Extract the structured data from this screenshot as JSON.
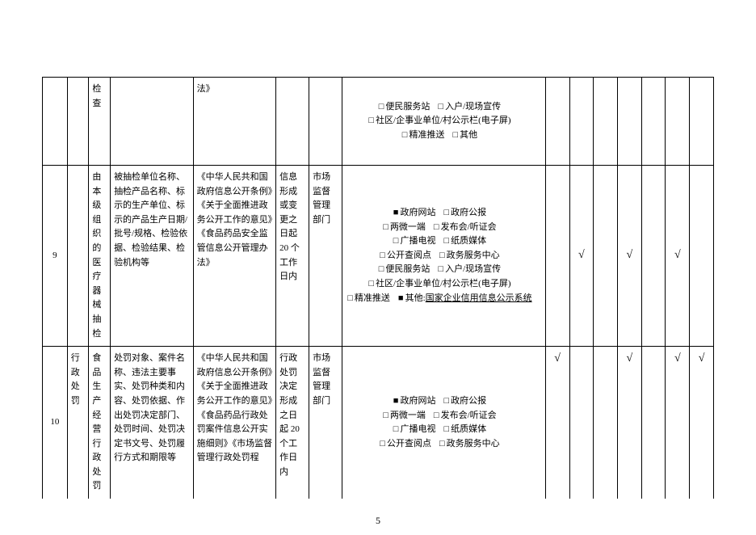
{
  "page_number": "5",
  "colors": {
    "text": "#000000",
    "bg": "#ffffff",
    "border": "#000000"
  },
  "checkbox_empty": "□",
  "checkbox_filled": "■",
  "checkmark": "√",
  "rows": [
    {
      "col3": "检查",
      "col5": "法》",
      "channels": [
        {
          "box": "empty",
          "label": "便民服务站"
        },
        {
          "box": "empty",
          "label": "入户/现场宣传",
          "break": true
        },
        {
          "box": "empty",
          "label": "社区/企事业单位/村公示栏(电子屏)",
          "break": true
        },
        {
          "box": "empty",
          "label": "精准推送"
        },
        {
          "box": "empty",
          "label": "其他"
        }
      ]
    },
    {
      "num": "9",
      "col3": "由本级组织的医疗器械抽检",
      "col4": "被抽检单位名称、抽检产品名称、标示的生产单位、标示的产品生产日期/批号/规格、检验依据、检验结果、检验机构等",
      "col5": "《中华人民共和国政府信息公开条例》《关于全面推进政务公开工作的意见》《食品药品安全监管信息公开管理办法》",
      "col6": "信息形成或变更之日起 20 个工作日内",
      "col7": "市场监督管理部门",
      "channels": [
        {
          "box": "filled",
          "label": "政府网站"
        },
        {
          "box": "empty",
          "label": "政府公报",
          "break": true
        },
        {
          "box": "empty",
          "label": "两微一端"
        },
        {
          "box": "empty",
          "label": "发布会/听证会",
          "break": true
        },
        {
          "box": "empty",
          "label": "广播电视"
        },
        {
          "box": "empty",
          "label": "纸质媒体",
          "break": true
        },
        {
          "box": "empty",
          "label": "公开查阅点"
        },
        {
          "box": "empty",
          "label": "政务服务中心",
          "break": true
        },
        {
          "box": "empty",
          "label": "便民服务站"
        },
        {
          "box": "empty",
          "label": "入户/现场宣传",
          "break": true
        },
        {
          "box": "empty",
          "label": "社区/企事业单位/村公示栏(电子屏)",
          "break": true
        },
        {
          "box": "empty",
          "label": "精准推送"
        },
        {
          "box": "filled",
          "label": "其他:",
          "extra": "国家企业信用信息公示系统",
          "underline": true
        }
      ],
      "checks": [
        "",
        "√",
        "",
        "√",
        "",
        "√",
        ""
      ]
    },
    {
      "num": "10",
      "col2": "行政处罚",
      "col3": "食品生产经营行政处罚",
      "col4": "处罚对象、案件名称、违法主要事实、处罚种类和内容、处罚依据、作出处罚决定部门、处罚时间、处罚决定书文号、处罚履行方式和期限等",
      "col5": "《中华人民共和国政府信息公开条例》《关于全面推进政务公开工作的意见》《食品药品行政处罚案件信息公开实施细则》《市场监督管理行政处罚程",
      "col6": "行政处罚决定形成之日起 20 个工作日内",
      "col7": "市场监督管理部门",
      "channels": [
        {
          "box": "filled",
          "label": "政府网站"
        },
        {
          "box": "empty",
          "label": "政府公报",
          "break": true
        },
        {
          "box": "empty",
          "label": "两微一端"
        },
        {
          "box": "empty",
          "label": "发布会/听证会",
          "break": true
        },
        {
          "box": "empty",
          "label": "广播电视"
        },
        {
          "box": "empty",
          "label": "纸质媒体",
          "break": true
        },
        {
          "box": "empty",
          "label": "公开查阅点"
        },
        {
          "box": "empty",
          "label": "政务服务中心"
        }
      ],
      "checks": [
        "√",
        "",
        "",
        "√",
        "",
        "√",
        "√"
      ]
    }
  ]
}
